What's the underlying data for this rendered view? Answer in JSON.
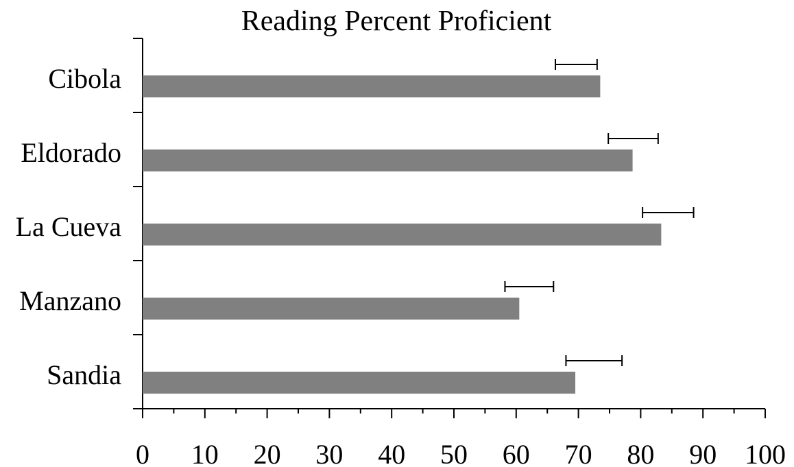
{
  "chart_data": {
    "type": "bar",
    "orientation": "horizontal",
    "title": "Reading Percent Proficient",
    "xlabel": "",
    "ylabel": "",
    "categories": [
      "Cibola",
      "Eldorado",
      "La Cueva",
      "Manzano",
      "Sandia"
    ],
    "series": [
      {
        "values": [
          73.5,
          78.7,
          83.3,
          60.5,
          69.5
        ]
      }
    ],
    "ranges": [
      {
        "category": "Cibola",
        "low": 66.3,
        "high": 73.0
      },
      {
        "category": "Eldorado",
        "low": 74.8,
        "high": 82.8
      },
      {
        "category": "La Cueva",
        "low": 80.3,
        "high": 88.5
      },
      {
        "category": "Manzano",
        "low": 58.2,
        "high": 66.0
      },
      {
        "category": "Sandia",
        "low": 68.0,
        "high": 77.0
      }
    ],
    "xlim": [
      0,
      100
    ],
    "xticks": [
      0,
      10,
      20,
      30,
      40,
      50,
      60,
      70,
      80,
      90,
      100
    ],
    "grid": false,
    "bar_color": "#808080"
  }
}
